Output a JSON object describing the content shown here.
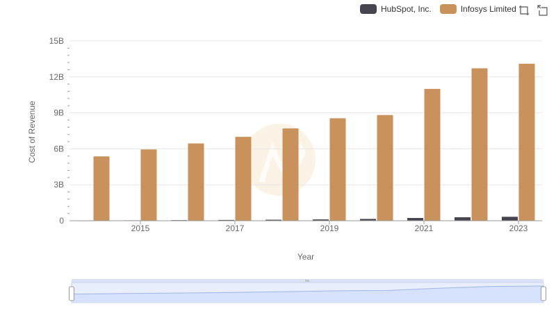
{
  "legend": {
    "items": [
      {
        "label": "HubSpot, Inc.",
        "color": "#46444f"
      },
      {
        "label": "Infosys Limited",
        "color": "#c9915c"
      }
    ]
  },
  "toolbar": {
    "zoom_icon": "zoom-select-icon",
    "reset_icon": "zoom-reset-icon"
  },
  "chart_data": {
    "type": "bar",
    "xlabel": "Year",
    "ylabel": "Cost of Revenue",
    "ylim": [
      0,
      15000000000
    ],
    "yticks": [
      "0",
      "3B",
      "6B",
      "9B",
      "12B",
      "15B"
    ],
    "x_tick_labels": [
      "2015",
      "2017",
      "2019",
      "2021",
      "2023"
    ],
    "categories": [
      "2014",
      "2015",
      "2016",
      "2017",
      "2018",
      "2019",
      "2020",
      "2021",
      "2022",
      "2023"
    ],
    "grid": true,
    "legend_position": "top-right",
    "series": [
      {
        "name": "HubSpot, Inc.",
        "color": "#46444f",
        "values": [
          15000000,
          35000000,
          50000000,
          65000000,
          85000000,
          110000000,
          150000000,
          230000000,
          290000000,
          330000000
        ]
      },
      {
        "name": "Infosys Limited",
        "color": "#c9915c",
        "values": [
          5370000000,
          5950000000,
          6450000000,
          7000000000,
          7700000000,
          8550000000,
          8820000000,
          11000000000,
          12720000000,
          13100000000
        ]
      }
    ],
    "range_selector": {
      "selected_from": "2014",
      "selected_to": "2023"
    }
  }
}
